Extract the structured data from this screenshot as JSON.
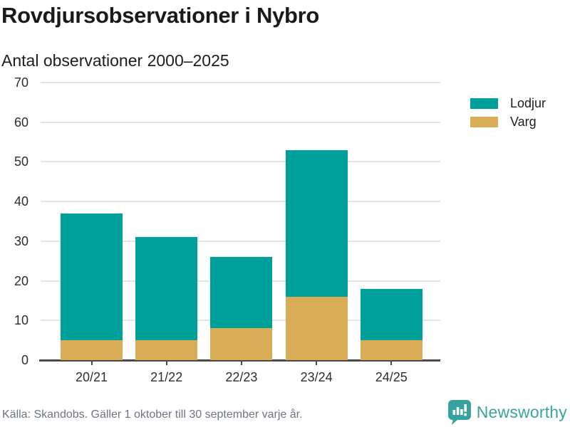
{
  "header": {
    "title": "Rovdjursobservationer i Nybro",
    "subtitle": "Antal observationer 2000–2025"
  },
  "chart_data": {
    "type": "bar",
    "stacked": true,
    "title": "Rovdjursobservationer i Nybro",
    "subtitle": "Antal observationer 2000–2025",
    "categories": [
      "20/21",
      "21/22",
      "22/23",
      "23/24",
      "24/25"
    ],
    "series": [
      {
        "name": "Lodjur",
        "color": "#00a09a",
        "values": [
          32,
          26,
          18,
          37,
          13
        ]
      },
      {
        "name": "Varg",
        "color": "#d9ac57",
        "values": [
          5,
          5,
          8,
          16,
          5
        ]
      }
    ],
    "totals": [
      37,
      31,
      26,
      53,
      18
    ],
    "xlabel": "",
    "ylabel": "",
    "ylim": [
      0,
      70
    ],
    "yticks": [
      0,
      10,
      20,
      30,
      40,
      50,
      60,
      70
    ],
    "grid": true,
    "legend_position": "right"
  },
  "footer": {
    "source": "Källa: Skandobs. Gäller 1 oktober till 30 september varje år.",
    "brand": "Newsworthy"
  },
  "colors": {
    "lodjur": "#00a09a",
    "varg": "#d9ac57",
    "brand_teal": "#3aa39c",
    "gridline": "#e4e4e4",
    "axis": "#4a4a4a"
  }
}
